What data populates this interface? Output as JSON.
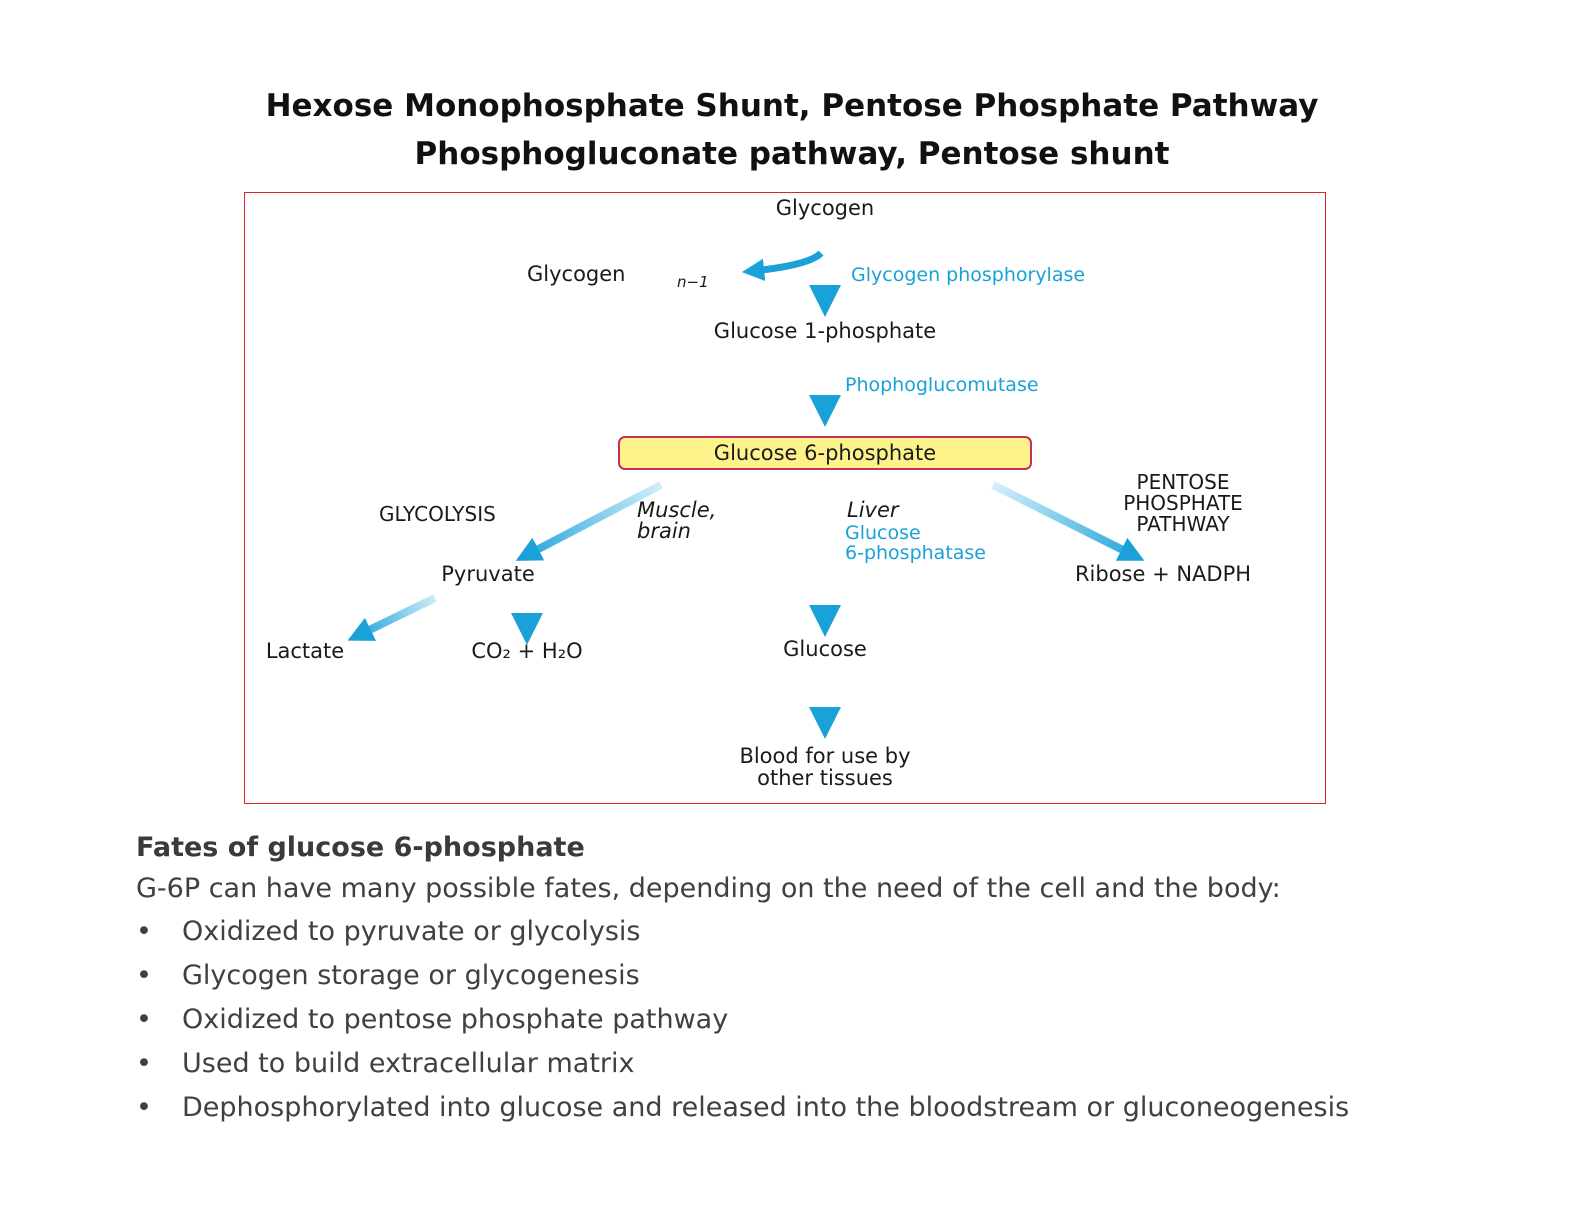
{
  "title": {
    "line1": "Hexose Monophosphate Shunt, Pentose Phosphate Pathway",
    "line2": "Phosphogluconate pathway, Pentose shunt"
  },
  "diagram": {
    "colors": {
      "arrow": "#1aa1d8",
      "frame": "#d9262b",
      "highlight_fill": "#fdf38a",
      "highlight_border": "#c2305f"
    },
    "nodes": {
      "glycogen": "Glycogen",
      "glycogen_n1": "Glycogen",
      "glycogen_n1_sub": "n−1",
      "glucose_1p": "Glucose 1-phosphate",
      "glucose_6p": "Glucose 6-phosphate",
      "pyruvate": "Pyruvate",
      "lactate": "Lactate",
      "co2_water": "CO₂ + H₂O",
      "glucose": "Glucose",
      "blood_line1": "Blood for use by",
      "blood_line2": "other tissues",
      "ribose_nadph": "Ribose + NADPH"
    },
    "enzymes": {
      "glycogen_phosphorylase": "Glycogen phosphorylase",
      "phosphoglucomutase": "Phophoglucomutase",
      "g6pase_line1": "Glucose",
      "g6pase_line2": "6-phosphatase"
    },
    "labels": {
      "glycolysis": "GLYCOLYSIS",
      "muscle_line1": "Muscle,",
      "muscle_line2": "brain",
      "liver": "Liver",
      "ppp_line1": "PENTOSE",
      "ppp_line2": "PHOSPHATE",
      "ppp_line3": "PATHWAY"
    }
  },
  "fates": {
    "heading": "Fates of glucose 6-phosphate",
    "intro": "G-6P can have many possible fates, depending on the need of the cell and the body:",
    "bullet": "•",
    "items": [
      "Oxidized to pyruvate or glycolysis",
      "Glycogen storage or glycogenesis",
      "Oxidized to pentose phosphate pathway",
      "Used to build extracellular matrix",
      "Dephosphorylated into glucose and released into the bloodstream or gluconeogenesis"
    ]
  }
}
